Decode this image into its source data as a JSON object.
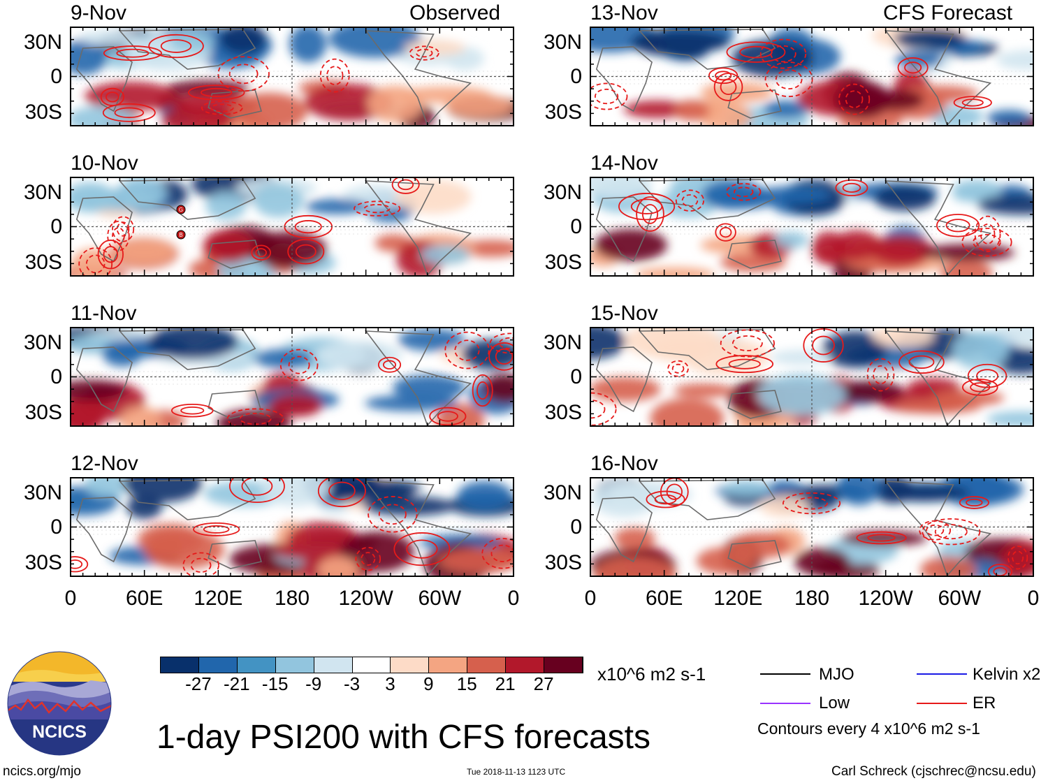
{
  "title": "1-day PSI200 with CFS forecasts",
  "observed_label": "Observed",
  "forecast_label": "CFS Forecast",
  "panels": [
    {
      "date": "9-Nov",
      "kind": "observed"
    },
    {
      "date": "10-Nov",
      "kind": "observed"
    },
    {
      "date": "11-Nov",
      "kind": "observed"
    },
    {
      "date": "12-Nov",
      "kind": "observed"
    },
    {
      "date": "13-Nov",
      "kind": "forecast"
    },
    {
      "date": "14-Nov",
      "kind": "forecast"
    },
    {
      "date": "15-Nov",
      "kind": "forecast"
    },
    {
      "date": "16-Nov",
      "kind": "forecast"
    }
  ],
  "lat_labels": [
    "30N",
    "0",
    "30S"
  ],
  "lon_labels": [
    "0",
    "60E",
    "120E",
    "180",
    "120W",
    "60W",
    "0"
  ],
  "colorbar": {
    "units": "x10^6 m2 s-1",
    "ticks": [
      "-27",
      "-21",
      "-15",
      "-9",
      "-3",
      "3",
      "9",
      "15",
      "21",
      "27"
    ],
    "colors": [
      "#08306b",
      "#2166ac",
      "#4393c3",
      "#92c5de",
      "#d1e5f0",
      "#ffffff",
      "#fddbc7",
      "#f4a582",
      "#d6604d",
      "#b2182b",
      "#67001f"
    ]
  },
  "legend": {
    "items": [
      {
        "label": "MJO",
        "color": "#000000"
      },
      {
        "label": "Kelvin x2",
        "color": "#1a1ae6"
      },
      {
        "label": "Low",
        "color": "#9933ff"
      },
      {
        "label": "ER",
        "color": "#e61a1a"
      }
    ],
    "contour_note": "Contours every 4 x10^6 m2 s-1"
  },
  "logo": {
    "text": "NCICS"
  },
  "footer": {
    "url": "ncics.org/mjo",
    "timestamp": "Tue 2018-11-13 1123 UTC",
    "author": "Carl Schreck (cjschrec@ncsu.edu)"
  },
  "storm_markers": [
    "G",
    "B"
  ]
}
